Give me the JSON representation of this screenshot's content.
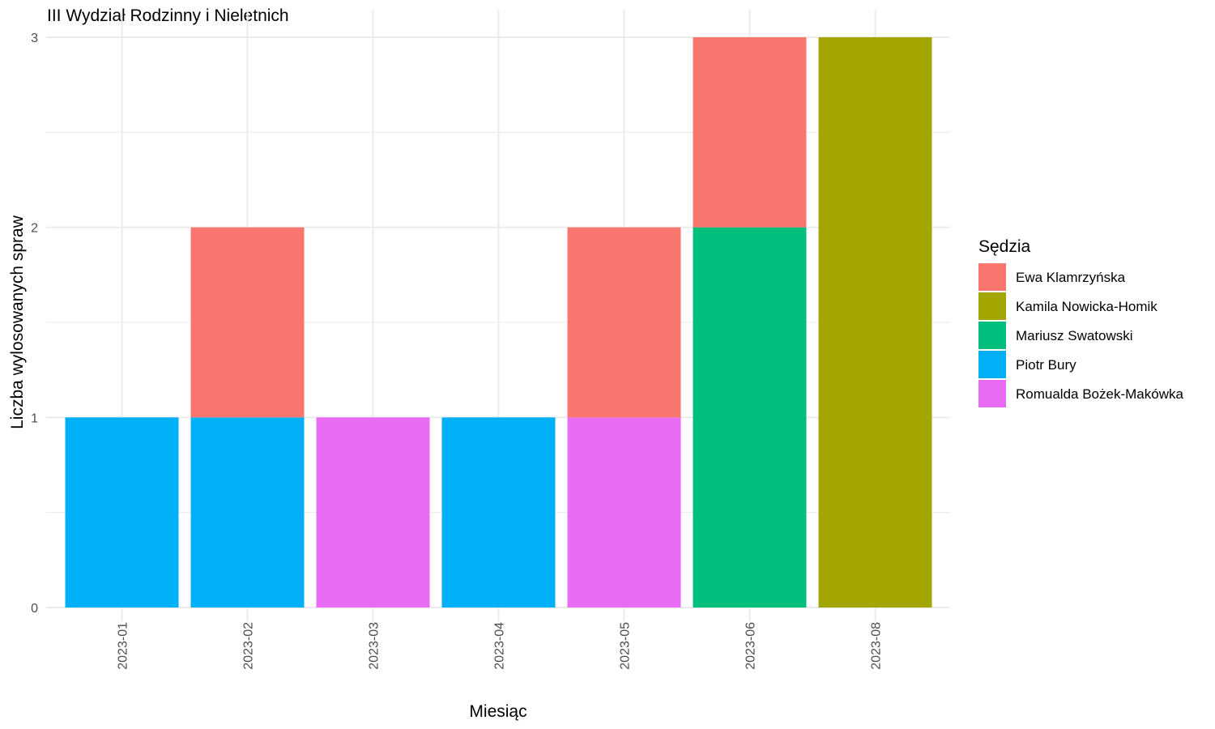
{
  "chart_data": {
    "type": "bar",
    "stacked": true,
    "title": "III Wydział Rodzinny i Nieletnich",
    "xlabel": "Miesiąc",
    "ylabel": "Liczba wylosowanych spraw",
    "ylim": [
      0,
      3
    ],
    "yticks": [
      "0",
      "1",
      "2",
      "3"
    ],
    "grid": true,
    "categories": [
      "2023-01",
      "2023-02",
      "2023-03",
      "2023-04",
      "2023-05",
      "2023-06",
      "2023-08"
    ],
    "legend": {
      "title": "Sędzia",
      "position": "right"
    },
    "series": [
      {
        "name": "Ewa Klamrzyńska",
        "color": "#F8766D",
        "values": [
          0,
          1,
          0,
          0,
          1,
          1,
          0
        ]
      },
      {
        "name": "Kamila Nowicka-Homik",
        "color": "#A3A500",
        "values": [
          0,
          0,
          0,
          0,
          0,
          0,
          3
        ]
      },
      {
        "name": "Mariusz Swatowski",
        "color": "#00BF7D",
        "values": [
          0,
          0,
          0,
          0,
          0,
          2,
          0
        ]
      },
      {
        "name": "Piotr Bury",
        "color": "#00B0F6",
        "values": [
          1,
          1,
          0,
          1,
          0,
          0,
          0
        ]
      },
      {
        "name": "Romualda Bożek-Makówka",
        "color": "#E76BF3",
        "values": [
          0,
          0,
          1,
          0,
          1,
          0,
          0
        ]
      }
    ]
  }
}
